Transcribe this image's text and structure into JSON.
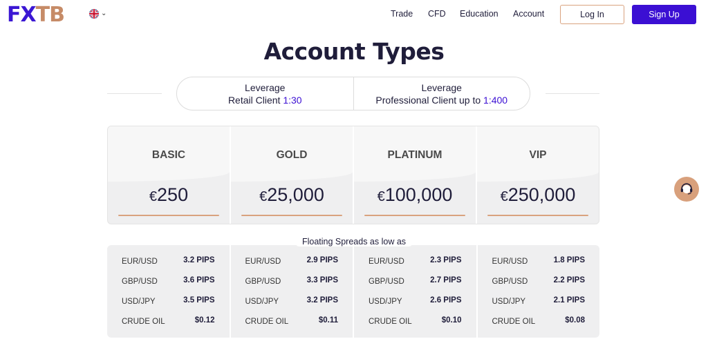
{
  "header": {
    "logo": {
      "part1": "FX",
      "part2": "TB"
    },
    "language_icon": "uk-flag-icon",
    "nav": [
      {
        "label": "Trade"
      },
      {
        "label": "CFD"
      },
      {
        "label": "Education"
      },
      {
        "label": "Account"
      }
    ],
    "login_label": "Log In",
    "signup_label": "Sign Up"
  },
  "page": {
    "title": "Account Types",
    "leverage": [
      {
        "heading": "Leverage",
        "text": "Retail Client ",
        "value": "1:30"
      },
      {
        "heading": "Leverage",
        "text": "Professional Client up to ",
        "value": "1:400"
      }
    ],
    "tiers": [
      {
        "name": "BASIC",
        "currency": "€",
        "amount": "250"
      },
      {
        "name": "GOLD",
        "currency": "€",
        "amount": "25,000"
      },
      {
        "name": "PLATINUM",
        "currency": "€",
        "amount": "100,000"
      },
      {
        "name": "VIP",
        "currency": "€",
        "amount": "250,000"
      }
    ],
    "spreads_label": "Floating Spreads as low as",
    "spreads": [
      [
        {
          "pair": "EUR/USD",
          "value": "3.2 PIPS"
        },
        {
          "pair": "GBP/USD",
          "value": "3.6 PIPS"
        },
        {
          "pair": "USD/JPY",
          "value": "3.5 PIPS"
        },
        {
          "pair": "CRUDE OIL",
          "value": "$0.12"
        }
      ],
      [
        {
          "pair": "EUR/USD",
          "value": "2.9 PIPS"
        },
        {
          "pair": "GBP/USD",
          "value": "3.3 PIPS"
        },
        {
          "pair": "USD/JPY",
          "value": "3.2 PIPS"
        },
        {
          "pair": "CRUDE OIL",
          "value": "$0.11"
        }
      ],
      [
        {
          "pair": "EUR/USD",
          "value": "2.3 PIPS"
        },
        {
          "pair": "GBP/USD",
          "value": "2.7 PIPS"
        },
        {
          "pair": "USD/JPY",
          "value": "2.6 PIPS"
        },
        {
          "pair": "CRUDE OIL",
          "value": "$0.10"
        }
      ],
      [
        {
          "pair": "EUR/USD",
          "value": "1.8 PIPS"
        },
        {
          "pair": "GBP/USD",
          "value": "2.2 PIPS"
        },
        {
          "pair": "USD/JPY",
          "value": "2.1 PIPS"
        },
        {
          "pair": "CRUDE OIL",
          "value": "$0.08"
        }
      ]
    ],
    "support_icon": "headset-icon"
  },
  "colors": {
    "brand_primary": "#3b0fd3",
    "brand_accent": "#d9a27e"
  }
}
